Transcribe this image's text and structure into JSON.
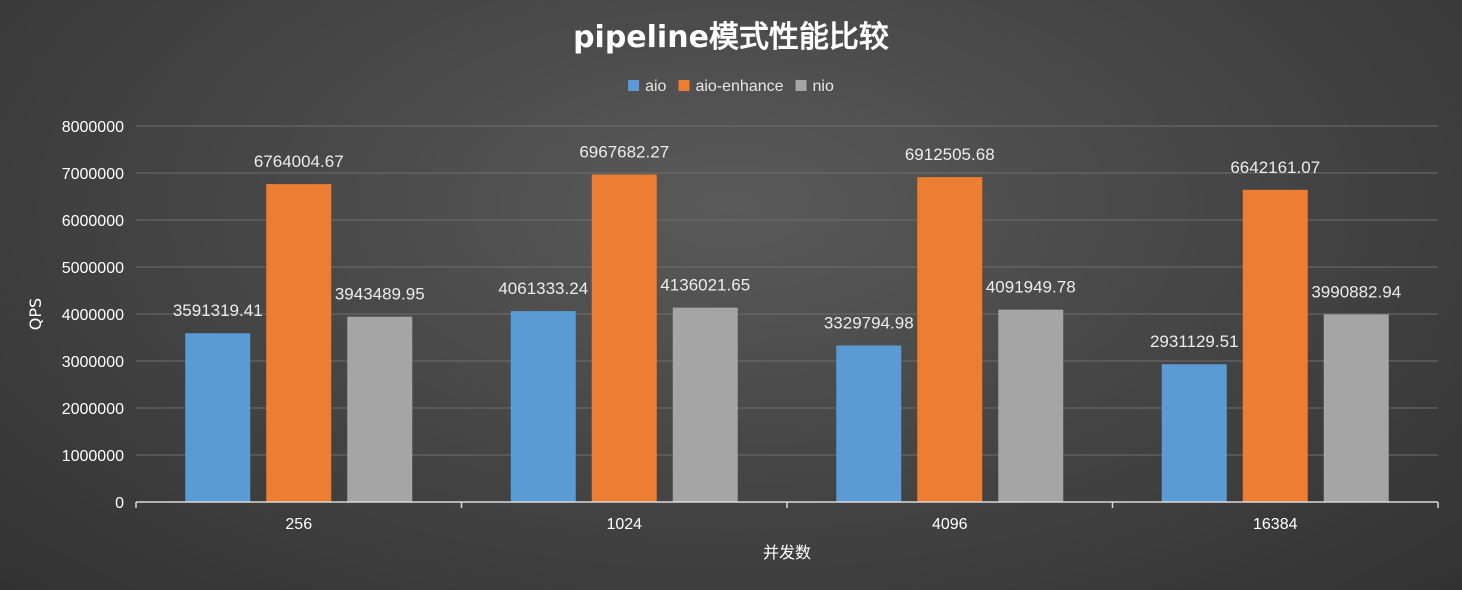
{
  "chart_data": {
    "type": "bar",
    "title": "pipeline模式性能比较",
    "xlabel": "并发数",
    "ylabel": "QPS",
    "categories": [
      "256",
      "1024",
      "4096",
      "16384"
    ],
    "series": [
      {
        "name": "aio",
        "color": "#5b9bd5",
        "values": [
          3591319.41,
          4061333.24,
          3329794.98,
          2931129.51
        ],
        "labels": [
          "3591319.41",
          "4061333.24",
          "3329794.98",
          "2931129.51"
        ]
      },
      {
        "name": "aio-enhance",
        "color": "#ed7d31",
        "values": [
          6764004.67,
          6967682.27,
          6912505.68,
          6642161.07
        ],
        "labels": [
          "6764004.67",
          "6967682.27",
          "6912505.68",
          "6642161.07"
        ]
      },
      {
        "name": "nio",
        "color": "#a5a5a5",
        "values": [
          3943489.95,
          4136021.65,
          4091949.78,
          3990882.94
        ],
        "labels": [
          "3943489.95",
          "4136021.65",
          "4091949.78",
          "3990882.94"
        ]
      }
    ],
    "ylim": [
      0,
      8000000
    ],
    "yticks": [
      "0",
      "1000000",
      "2000000",
      "3000000",
      "4000000",
      "5000000",
      "6000000",
      "7000000",
      "8000000"
    ],
    "grid": true,
    "legend_position": "top-center"
  }
}
